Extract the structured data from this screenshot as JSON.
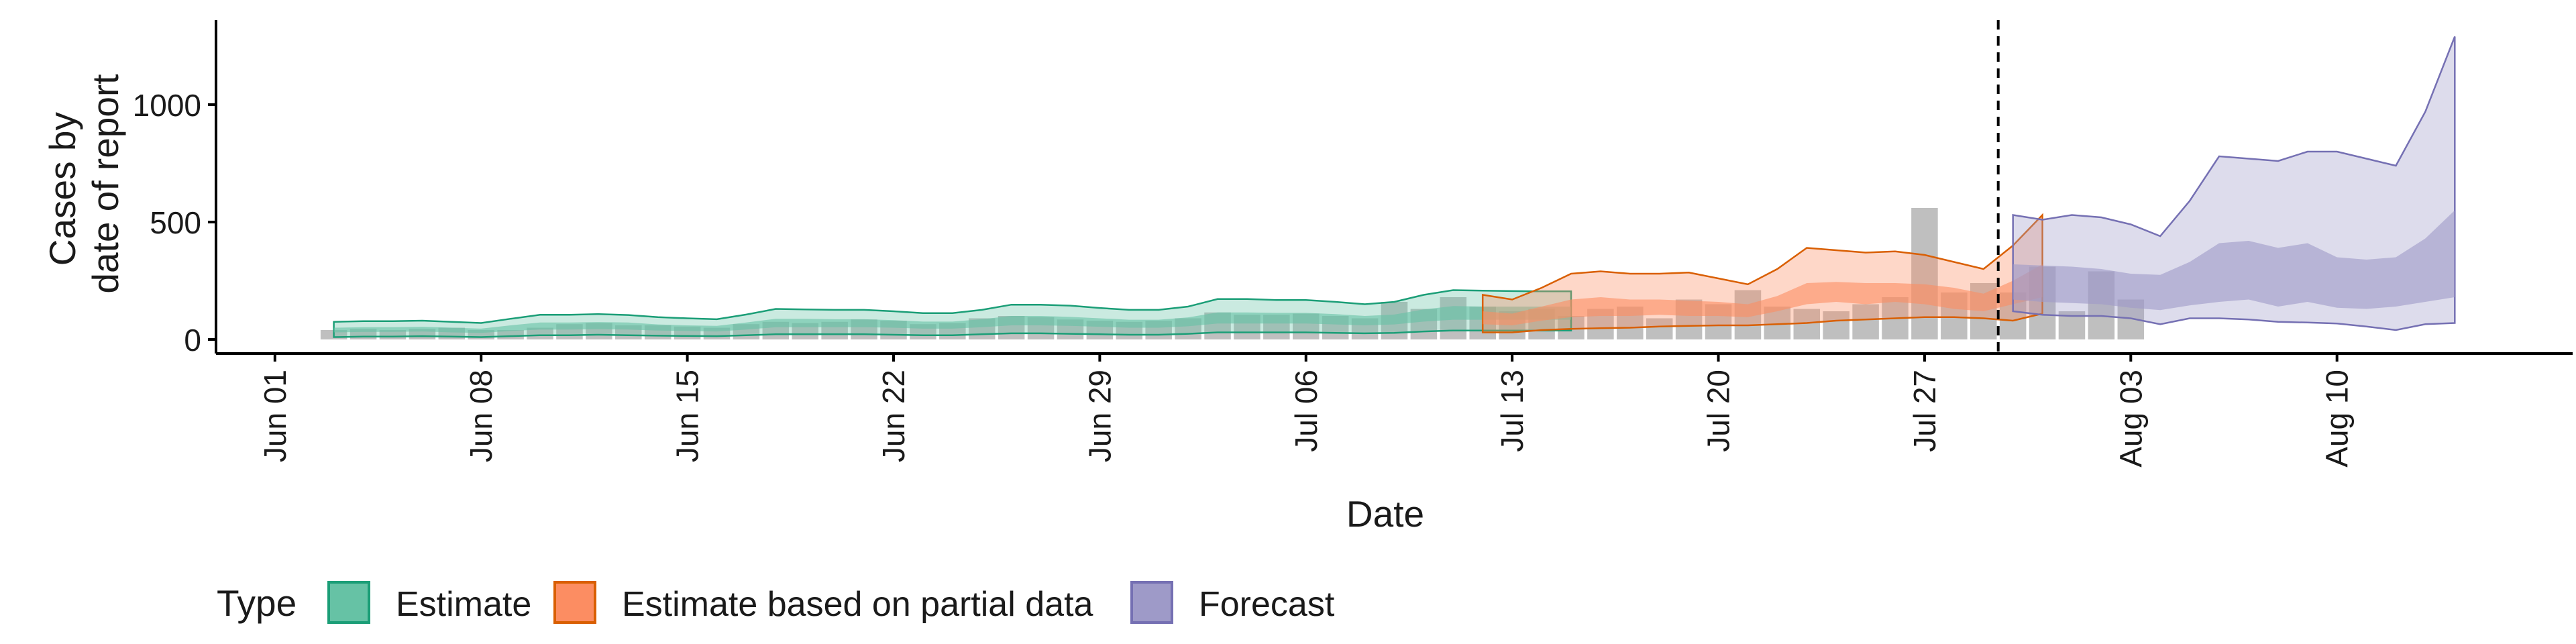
{
  "chart_data": {
    "type": "area",
    "xlabel": "Date",
    "ylabel_lines": [
      "Cases by",
      "date of report"
    ],
    "x_ticks": [
      "2020-06-01",
      "2020-06-08",
      "2020-06-15",
      "2020-06-22",
      "2020-06-29",
      "2020-07-06",
      "2020-07-13",
      "2020-07-20",
      "2020-07-27",
      "2020-08-03",
      "2020-08-10"
    ],
    "x_tick_labels": [
      "Jun 01",
      "Jun 08",
      "Jun 15",
      "Jun 22",
      "Jun 29",
      "Jul 06",
      "Jul 13",
      "Jul 20",
      "Jul 27",
      "Aug 03",
      "Aug 10"
    ],
    "y_ticks": [
      0,
      500,
      1000
    ],
    "y_tick_labels": [
      "0",
      "500",
      "1000"
    ],
    "ylim": [
      -60,
      1360
    ],
    "xlim": [
      "2020-05-30",
      "2020-08-18"
    ],
    "forecast_date": "2020-07-29",
    "legend": {
      "title": "Type",
      "position": "bottom-left",
      "items": [
        {
          "label": "Estimate",
          "fill": "#66c2a5",
          "stroke": "#1b9e77"
        },
        {
          "label": "Estimate based on partial data",
          "fill": "#fc8d62",
          "stroke": "#d95f02"
        },
        {
          "label": "Forecast",
          "fill": "#9e9ac8",
          "stroke": "#7570b3"
        }
      ]
    },
    "reported_cases": {
      "start_date": "2020-06-03",
      "values": [
        40,
        45,
        40,
        45,
        50,
        40,
        40,
        50,
        65,
        70,
        60,
        60,
        55,
        50,
        65,
        75,
        70,
        75,
        85,
        80,
        65,
        70,
        90,
        100,
        95,
        85,
        80,
        75,
        80,
        90,
        115,
        105,
        105,
        110,
        100,
        90,
        160,
        130,
        180,
        140,
        120,
        130,
        100,
        130,
        140,
        90,
        170,
        150,
        210,
        140,
        130,
        120,
        150,
        180,
        560,
        200,
        240,
        200,
        310,
        120,
        290,
        170
      ]
    },
    "series": [
      {
        "name": "Estimate",
        "start_date": "2020-06-03",
        "lower90": [
          10,
          12,
          12,
          14,
          12,
          10,
          14,
          18,
          18,
          20,
          18,
          16,
          15,
          14,
          18,
          22,
          22,
          22,
          22,
          20,
          18,
          18,
          22,
          26,
          26,
          24,
          22,
          20,
          20,
          24,
          30,
          30,
          30,
          30,
          28,
          26,
          28,
          34,
          38,
          38,
          38,
          38,
          38
        ],
        "lower50": [
          30,
          32,
          32,
          34,
          30,
          28,
          36,
          42,
          42,
          44,
          42,
          38,
          36,
          34,
          42,
          52,
          52,
          52,
          52,
          50,
          46,
          46,
          52,
          60,
          60,
          58,
          54,
          50,
          50,
          56,
          68,
          68,
          68,
          68,
          64,
          60,
          64,
          76,
          84,
          84,
          84,
          84,
          84
        ],
        "upper50": [
          50,
          52,
          52,
          54,
          50,
          46,
          60,
          72,
          72,
          74,
          72,
          64,
          60,
          58,
          72,
          88,
          88,
          86,
          86,
          82,
          76,
          76,
          86,
          100,
          100,
          96,
          90,
          84,
          84,
          94,
          115,
          115,
          113,
          113,
          108,
          100,
          106,
          128,
          142,
          140,
          140,
          140,
          140
        ],
        "upper90": [
          75,
          78,
          78,
          80,
          75,
          70,
          88,
          105,
          105,
          108,
          104,
          95,
          90,
          86,
          106,
          130,
          128,
          126,
          126,
          120,
          112,
          112,
          126,
          148,
          148,
          144,
          134,
          126,
          126,
          140,
          172,
          172,
          168,
          168,
          160,
          150,
          160,
          190,
          210,
          208,
          206,
          205,
          205
        ]
      },
      {
        "name": "Estimate based on partial data",
        "start_date": "2020-07-12",
        "lower90": [
          30,
          30,
          40,
          45,
          48,
          50,
          55,
          58,
          60,
          60,
          65,
          70,
          80,
          85,
          90,
          95,
          95,
          90,
          80,
          110
        ],
        "lower50": [
          65,
          60,
          80,
          95,
          100,
          100,
          105,
          100,
          100,
          95,
          120,
          150,
          160,
          150,
          160,
          150,
          130,
          120,
          150,
          180
        ],
        "upper50": [
          120,
          110,
          140,
          170,
          180,
          170,
          170,
          165,
          160,
          150,
          185,
          240,
          245,
          240,
          240,
          235,
          220,
          195,
          250,
          320
        ],
        "upper90": [
          190,
          170,
          220,
          280,
          290,
          280,
          280,
          285,
          260,
          235,
          300,
          390,
          380,
          370,
          375,
          360,
          330,
          300,
          400,
          530
        ]
      },
      {
        "name": "Forecast",
        "start_date": "2020-07-30",
        "lower90": [
          120,
          105,
          100,
          100,
          90,
          65,
          90,
          90,
          85,
          75,
          72,
          68,
          55,
          40,
          65,
          70
        ],
        "lower50": [
          170,
          160,
          155,
          150,
          135,
          125,
          145,
          160,
          170,
          140,
          160,
          135,
          130,
          140,
          160,
          180
        ],
        "upper50": [
          320,
          315,
          310,
          300,
          280,
          275,
          330,
          410,
          420,
          390,
          410,
          350,
          340,
          350,
          430,
          550
        ],
        "upper90": [
          530,
          510,
          530,
          520,
          490,
          440,
          590,
          780,
          770,
          760,
          800,
          800,
          770,
          740,
          970,
          1290
        ]
      }
    ]
  }
}
